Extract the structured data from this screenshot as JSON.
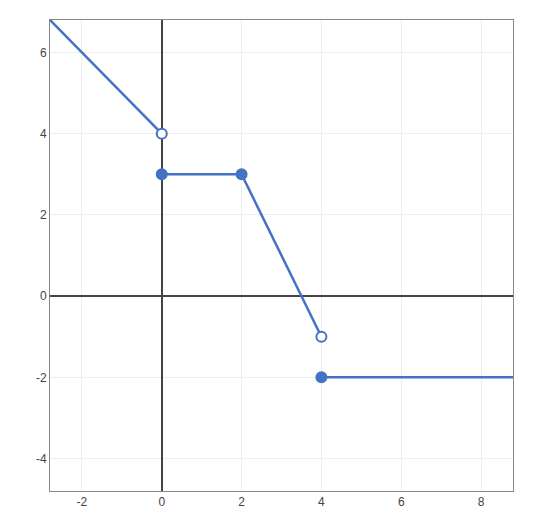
{
  "chart_data": {
    "type": "line",
    "color": "#4472C4",
    "xlim": [
      -2.8,
      8.8
    ],
    "ylim": [
      -4.8,
      6.8
    ],
    "xticks": [
      -2,
      0,
      2,
      4,
      6,
      8
    ],
    "yticks": [
      -4,
      -2,
      0,
      2,
      4,
      6
    ],
    "grid": true,
    "series": [
      {
        "x": [
          -2.8,
          0
        ],
        "values": [
          6.8,
          4
        ]
      },
      {
        "x": [
          0,
          2
        ],
        "values": [
          3,
          3
        ]
      },
      {
        "x": [
          2,
          4
        ],
        "values": [
          3,
          -1
        ]
      },
      {
        "x": [
          4,
          8.8
        ],
        "values": [
          -2,
          -2
        ]
      },
      {
        "type": "scatter",
        "marker": "open",
        "x": [
          0,
          4
        ],
        "values": [
          4,
          -1
        ]
      },
      {
        "type": "scatter",
        "marker": "closed",
        "x": [
          0,
          2,
          4
        ],
        "values": [
          3,
          3,
          -2
        ]
      }
    ]
  }
}
